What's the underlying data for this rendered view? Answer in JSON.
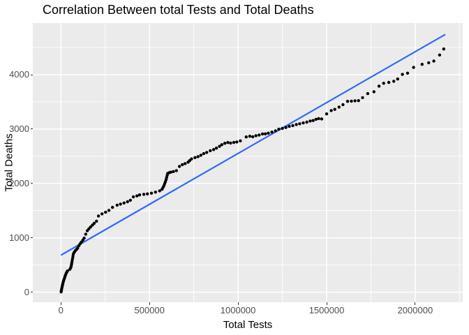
{
  "chart_data": {
    "type": "scatter",
    "title": "Correlation Between total Tests and Total Deaths",
    "xlabel": "Total Tests",
    "ylabel": "Total Deaths",
    "xlim": [
      -158800,
      2268300
    ],
    "ylim": [
      -185,
      4950
    ],
    "x_ticks": [
      0,
      500000,
      1000000,
      1500000,
      2000000
    ],
    "x_tick_labels": [
      "0",
      "500000",
      "1000000",
      "1500000",
      "2000000"
    ],
    "x_minor": [
      250000,
      750000,
      1250000,
      1750000,
      2250000
    ],
    "y_ticks": [
      0,
      1000,
      2000,
      3000,
      4000
    ],
    "y_tick_labels": [
      "0",
      "1000",
      "2000",
      "3000",
      "4000"
    ],
    "y_minor": [
      500,
      1500,
      2500,
      3500,
      4500
    ],
    "grid": "major and minor white gridlines on grey panel",
    "legend": "none",
    "colors": {
      "point": "#000000",
      "line": "#3366FF",
      "panel_bg": "#EBEBEB",
      "grid": "#FFFFFF",
      "tick_label": "#4D4D4D",
      "axis_title": "#000000",
      "title": "#000000",
      "background": "#FFFFFF"
    },
    "trend_line": {
      "x1": 0,
      "y1": 680,
      "x2": 2170000,
      "y2": 4740
    },
    "points": [
      [
        1000,
        5
      ],
      [
        2500,
        25
      ],
      [
        4000,
        55
      ],
      [
        6000,
        85
      ],
      [
        8000,
        115
      ],
      [
        10000,
        145
      ],
      [
        12000,
        172
      ],
      [
        14000,
        200
      ],
      [
        17000,
        228
      ],
      [
        20000,
        258
      ],
      [
        23000,
        288
      ],
      [
        26000,
        316
      ],
      [
        29000,
        342
      ],
      [
        33000,
        368
      ],
      [
        37000,
        390
      ],
      [
        50000,
        420
      ],
      [
        55000,
        448
      ],
      [
        58000,
        478
      ],
      [
        60000,
        512
      ],
      [
        62000,
        548
      ],
      [
        64000,
        586
      ],
      [
        66000,
        625
      ],
      [
        68000,
        664
      ],
      [
        70000,
        700
      ],
      [
        74000,
        728
      ],
      [
        79000,
        752
      ],
      [
        84000,
        772
      ],
      [
        89000,
        790
      ],
      [
        94000,
        808
      ],
      [
        101000,
        852
      ],
      [
        108000,
        888
      ],
      [
        116000,
        922
      ],
      [
        124000,
        958
      ],
      [
        131000,
        993
      ],
      [
        140000,
        1065
      ],
      [
        149000,
        1130
      ],
      [
        158000,
        1165
      ],
      [
        168000,
        1200
      ],
      [
        178000,
        1233
      ],
      [
        188000,
        1265
      ],
      [
        201000,
        1305
      ],
      [
        212000,
        1400
      ],
      [
        232000,
        1440
      ],
      [
        252000,
        1470
      ],
      [
        271000,
        1505
      ],
      [
        291000,
        1560
      ],
      [
        317000,
        1600
      ],
      [
        336000,
        1620
      ],
      [
        356000,
        1640
      ],
      [
        376000,
        1662
      ],
      [
        392000,
        1690
      ],
      [
        409000,
        1752
      ],
      [
        429000,
        1770
      ],
      [
        444000,
        1790
      ],
      [
        468000,
        1800
      ],
      [
        488000,
        1808
      ],
      [
        511000,
        1820
      ],
      [
        534000,
        1840
      ],
      [
        557000,
        1862
      ],
      [
        571000,
        1892
      ],
      [
        577000,
        1928
      ],
      [
        582000,
        1962
      ],
      [
        586000,
        1998
      ],
      [
        590000,
        2032
      ],
      [
        594000,
        2072
      ],
      [
        597000,
        2112
      ],
      [
        600000,
        2152
      ],
      [
        603000,
        2185
      ],
      [
        611000,
        2198
      ],
      [
        620000,
        2207
      ],
      [
        635000,
        2218
      ],
      [
        652000,
        2235
      ],
      [
        669000,
        2312
      ],
      [
        685000,
        2345
      ],
      [
        701000,
        2365
      ],
      [
        718000,
        2390
      ],
      [
        727000,
        2420
      ],
      [
        737000,
        2450
      ],
      [
        757000,
        2475
      ],
      [
        774000,
        2492
      ],
      [
        790000,
        2518
      ],
      [
        806000,
        2548
      ],
      [
        823000,
        2570
      ],
      [
        843000,
        2602
      ],
      [
        862000,
        2622
      ],
      [
        878000,
        2650
      ],
      [
        895000,
        2682
      ],
      [
        908000,
        2712
      ],
      [
        925000,
        2738
      ],
      [
        942000,
        2752
      ],
      [
        958000,
        2742
      ],
      [
        976000,
        2753
      ],
      [
        993000,
        2763
      ],
      [
        1013000,
        2783
      ],
      [
        1046000,
        2855
      ],
      [
        1066000,
        2868
      ],
      [
        1083000,
        2858
      ],
      [
        1101000,
        2878
      ],
      [
        1119000,
        2890
      ],
      [
        1138000,
        2910
      ],
      [
        1154000,
        2912
      ],
      [
        1171000,
        2924
      ],
      [
        1191000,
        2943
      ],
      [
        1211000,
        2967
      ],
      [
        1230000,
        2997
      ],
      [
        1250000,
        3011
      ],
      [
        1270000,
        3028
      ],
      [
        1289000,
        3049
      ],
      [
        1309000,
        3063
      ],
      [
        1329000,
        3084
      ],
      [
        1348000,
        3097
      ],
      [
        1368000,
        3113
      ],
      [
        1388000,
        3127
      ],
      [
        1407000,
        3147
      ],
      [
        1424000,
        3156
      ],
      [
        1440000,
        3180
      ],
      [
        1455000,
        3192
      ],
      [
        1472000,
        3186
      ],
      [
        1500000,
        3278
      ],
      [
        1526000,
        3340
      ],
      [
        1546000,
        3362
      ],
      [
        1570000,
        3405
      ],
      [
        1592000,
        3448
      ],
      [
        1618000,
        3510
      ],
      [
        1640000,
        3514
      ],
      [
        1660000,
        3520
      ],
      [
        1680000,
        3522
      ],
      [
        1703000,
        3578
      ],
      [
        1732000,
        3652
      ],
      [
        1767000,
        3685
      ],
      [
        1796000,
        3790
      ],
      [
        1822000,
        3842
      ],
      [
        1851000,
        3857
      ],
      [
        1879000,
        3878
      ],
      [
        1901000,
        3920
      ],
      [
        1928000,
        4005
      ],
      [
        1957000,
        4028
      ],
      [
        1991000,
        4133
      ],
      [
        2039000,
        4190
      ],
      [
        2076000,
        4220
      ],
      [
        2105000,
        4250
      ],
      [
        2138000,
        4362
      ],
      [
        2161000,
        4472
      ]
    ]
  }
}
